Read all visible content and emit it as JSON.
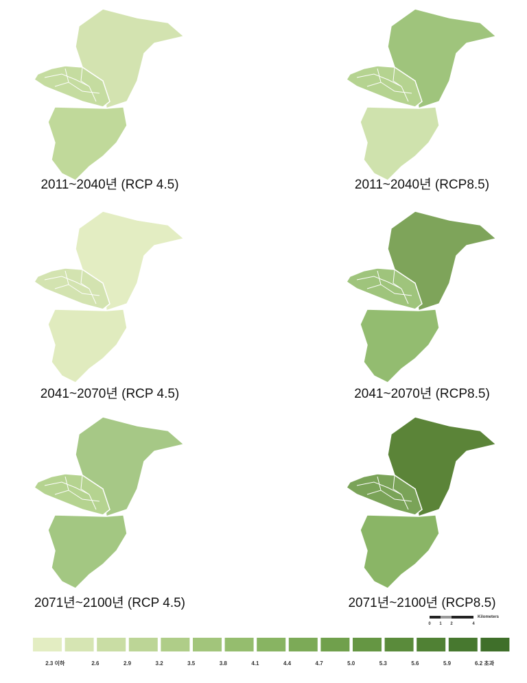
{
  "panels": [
    {
      "caption": "2011~2040년 (RCP  4.5)",
      "colors": [
        "#d3e3b0",
        "#c5dca0",
        "#c0d99a"
      ]
    },
    {
      "caption": "2011~2040년 (RCP8.5)",
      "colors": [
        "#9fc47c",
        "#b5d390",
        "#cfe2ad"
      ]
    },
    {
      "caption": "2041~2070년   (RCP  4.5)",
      "colors": [
        "#e3edc2",
        "#d3e3b0",
        "#e0ebbe"
      ]
    },
    {
      "caption": "2041~2070년 (RCP8.5)",
      "colors": [
        "#7ea45a",
        "#9fc47c",
        "#93bc70"
      ]
    },
    {
      "caption": "2071년~2100년 (RCP  4.5)",
      "colors": [
        "#a6c886",
        "#b5d390",
        "#a3c782"
      ]
    },
    {
      "caption": "2071년~2100년 (RCP8.5)",
      "colors": [
        "#5b8438",
        "#7aa358",
        "#8ab566"
      ]
    }
  ],
  "legend": {
    "labels": [
      "2.3 이하",
      "2.6",
      "2.9",
      "3.2",
      "3.5",
      "3.8",
      "4.1",
      "4.4",
      "4.7",
      "5.0",
      "5.3",
      "5.6",
      "5.9",
      "6.2 초과"
    ],
    "colors": [
      "#e3edc2",
      "#d6e5b3",
      "#c9dda4",
      "#bcd596",
      "#afcd88",
      "#a2c57b",
      "#95bd6e",
      "#88b462",
      "#7caa57",
      "#70a04c",
      "#659643",
      "#5a8b3b",
      "#508134",
      "#47782f",
      "#3f6f2a"
    ]
  },
  "scale": {
    "title": "Kilometers",
    "ticks": [
      "0",
      "1",
      "2",
      "4"
    ]
  }
}
